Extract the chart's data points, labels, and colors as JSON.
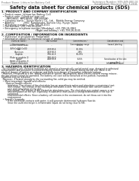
{
  "header_left": "Product Name: Lithium Ion Battery Cell",
  "header_right_line1": "Substance Number: SDS-049-000-10",
  "header_right_line2": "Established / Revision: Dec.7,2016",
  "title": "Safety data sheet for chemical products (SDS)",
  "s1_title": "1. PRODUCT AND COMPANY IDENTIFICATION",
  "s1_lines": [
    "• Product name: Lithium Ion Battery Cell",
    "• Product code: Cylindrical-type cell",
    "    (INR18650, INR18650L, INR18650A)",
    "• Company name:   Sanyo Electric Co., Ltd.,  Mobile Energy Company",
    "• Address:           2001  Kamikosaka, Sumoto City, Hyogo, Japan",
    "• Telephone number:  +81-799-26-4111",
    "• Fax number: +81-799-26-4120",
    "• Emergency telephone number (Weekday): +81-799-26-3962",
    "                                          (Night and holiday): +81-799-26-4101"
  ],
  "s2_title": "2. COMPOSITION / INFORMATION ON INGREDIENTS",
  "s2_sub1": "• Substance or preparation: Preparation",
  "s2_sub2": "• Information about the chemical nature of product:",
  "tbl_cols": [
    3,
    52,
    96,
    134,
    178
  ],
  "tbl_hdr": [
    "Chemical name /\nService name",
    "CAS number",
    "Concentration /\nConcentration range",
    "Classification and\nhazard labeling"
  ],
  "tbl_rows": [
    [
      "Lithium cobalt oxide\n(LiMnCoO4/LiCoO2)",
      "-",
      "30-60%",
      "-"
    ],
    [
      "Iron",
      "7439-89-6",
      "10-30%",
      "-"
    ],
    [
      "Aluminum",
      "7429-90-5",
      "2-8%",
      "-"
    ],
    [
      "Graphite\n(Flake or graphite-1)\n(Artificial graphite-1)",
      "7782-42-5\n7782-44-0",
      "10-25%",
      "-"
    ],
    [
      "Copper",
      "7440-50-8",
      "5-15%",
      "Sensitization of the skin\ngroup No.2"
    ],
    [
      "Organic electrolyte",
      "-",
      "10-20%",
      "Inflammable liquid"
    ]
  ],
  "s3_title": "3. HAZARDS IDENTIFICATION",
  "s3_para": [
    "  For the battery cell, chemical materials are stored in a hermetically sealed metal case, designed to withstand",
    "temperatures and pressures encountered during normal use. As a result, during normal use, there is no",
    "physical danger of ignition or explosion and there is no danger of hazardous materials leakage.",
    "  However, if exposed to a fire, added mechanical shocks, decomposed, when electric-electric energy misuse,",
    "the gas release cannot be operated. The battery cell case will be breached at fire-pothole, hazardous",
    "materials may be released.",
    "  Moreover, if heated strongly by the surrounding fire, solid gas may be emitted."
  ],
  "s3_bullet1": "• Most important hazard and effects:",
  "s3_human": "    Human health effects:",
  "s3_human_lines": [
    "       Inhalation: The release of the electrolyte has an anaesthesia action and stimulates a respiratory tract.",
    "       Skin contact: The release of the electrolyte stimulates a skin. The electrolyte skin contact causes a",
    "       sore and stimulation on the skin.",
    "       Eye contact: The release of the electrolyte stimulates eyes. The electrolyte eye contact causes a sore",
    "       and stimulation on the eye. Especially, a substance that causes a strong inflammation of the eye is",
    "       contained.",
    "       Environmental effects: Since a battery cell remains in the environment, do not throw out it into the",
    "       environment."
  ],
  "s3_specific": "• Specific hazards:",
  "s3_specific_lines": [
    "       If the electrolyte contacts with water, it will generate detrimental hydrogen fluoride.",
    "       Since the used electrolyte is inflammable liquid, do not bring close to fire."
  ],
  "bg_color": "#ffffff",
  "line_color": "#888888",
  "text_color": "#111111",
  "gray_text": "#666666"
}
